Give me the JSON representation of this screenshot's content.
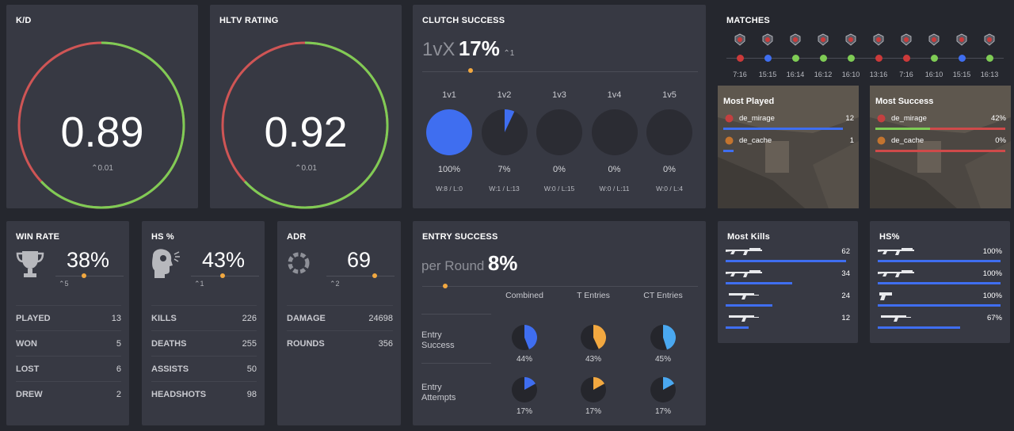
{
  "kd": {
    "title": "K/D",
    "value": "0.89",
    "change": "0.01",
    "ratio": 0.63
  },
  "hltv": {
    "title": "HLTV RATING",
    "value": "0.92",
    "change": "0.01",
    "ratio": 0.63
  },
  "clutch": {
    "title": "CLUTCH SUCCESS",
    "prefix": "1vX",
    "value": "17%",
    "change": "1",
    "items": [
      {
        "label": "1v1",
        "pct": "100%",
        "fraction": 1.0,
        "record": "W:8 / L:0"
      },
      {
        "label": "1v2",
        "pct": "7%",
        "fraction": 0.07,
        "record": "W:1 / L:13"
      },
      {
        "label": "1v3",
        "pct": "0%",
        "fraction": 0,
        "record": "W:0 / L:15"
      },
      {
        "label": "1v4",
        "pct": "0%",
        "fraction": 0,
        "record": "W:0 / L:11"
      },
      {
        "label": "1v5",
        "pct": "0%",
        "fraction": 0,
        "record": "W:0 / L:4"
      }
    ]
  },
  "matches": {
    "title": "MATCHES",
    "items": [
      {
        "time": "7:16",
        "result": "loss"
      },
      {
        "time": "15:15",
        "result": "draw"
      },
      {
        "time": "16:14",
        "result": "win"
      },
      {
        "time": "16:12",
        "result": "win"
      },
      {
        "time": "16:10",
        "result": "win"
      },
      {
        "time": "13:16",
        "result": "loss"
      },
      {
        "time": "7:16",
        "result": "loss"
      },
      {
        "time": "16:10",
        "result": "win"
      },
      {
        "time": "15:15",
        "result": "draw"
      },
      {
        "time": "16:13",
        "result": "win"
      }
    ]
  },
  "most_played": {
    "title": "Most Played",
    "items": [
      {
        "map": "de_mirage",
        "value": "12",
        "fraction": 0.92
      },
      {
        "map": "de_cache",
        "value": "1",
        "fraction": 0.08
      }
    ]
  },
  "most_success": {
    "title": "Most Success",
    "items": [
      {
        "map": "de_mirage",
        "value": "42%",
        "fraction": 0.42
      },
      {
        "map": "de_cache",
        "value": "0%",
        "fraction": 0
      }
    ]
  },
  "win_rate": {
    "title": "WIN RATE",
    "value": "38%",
    "change": "5",
    "rows": [
      {
        "label": "PLAYED",
        "value": "13"
      },
      {
        "label": "WON",
        "value": "5"
      },
      {
        "label": "LOST",
        "value": "6"
      },
      {
        "label": "DREW",
        "value": "2"
      }
    ]
  },
  "hs": {
    "title": "HS %",
    "value": "43%",
    "change": "1",
    "rows": [
      {
        "label": "KILLS",
        "value": "226"
      },
      {
        "label": "DEATHS",
        "value": "255"
      },
      {
        "label": "ASSISTS",
        "value": "50"
      },
      {
        "label": "HEADSHOTS",
        "value": "98"
      }
    ]
  },
  "adr": {
    "title": "ADR",
    "value": "69",
    "change": "2",
    "rows": [
      {
        "label": "DAMAGE",
        "value": "24698"
      },
      {
        "label": "ROUNDS",
        "value": "356"
      }
    ]
  },
  "entry": {
    "title": "ENTRY SUCCESS",
    "prefix": "per Round",
    "value": "8%",
    "columns": [
      "Combined",
      "T Entries",
      "CT Entries"
    ],
    "rows": [
      {
        "label": "Entry Success",
        "cells": [
          {
            "pct": "44%",
            "fraction": 0.44,
            "color": "#3f6ef0"
          },
          {
            "pct": "43%",
            "fraction": 0.43,
            "color": "#f2a840"
          },
          {
            "pct": "45%",
            "fraction": 0.45,
            "color": "#4aa8f0"
          }
        ]
      },
      {
        "label": "Entry Attempts",
        "cells": [
          {
            "pct": "17%",
            "fraction": 0.17,
            "color": "#3f6ef0"
          },
          {
            "pct": "17%",
            "fraction": 0.17,
            "color": "#f2a840"
          },
          {
            "pct": "17%",
            "fraction": 0.17,
            "color": "#4aa8f0"
          }
        ]
      }
    ]
  },
  "most_kills": {
    "title": "Most Kills",
    "items": [
      {
        "weapon": "ak47-icon",
        "value": "62",
        "fraction": 0.98
      },
      {
        "weapon": "m4a4-icon",
        "value": "34",
        "fraction": 0.54
      },
      {
        "weapon": "mp9-icon",
        "value": "24",
        "fraction": 0.38
      },
      {
        "weapon": "ump-icon",
        "value": "12",
        "fraction": 0.19
      }
    ]
  },
  "hs_weapons": {
    "title": "HS%",
    "items": [
      {
        "weapon": "m4a1-icon",
        "value": "100%",
        "fraction": 1.0
      },
      {
        "weapon": "sg553-icon",
        "value": "100%",
        "fraction": 1.0
      },
      {
        "weapon": "pistol-icon",
        "value": "100%",
        "fraction": 1.0
      },
      {
        "weapon": "mp7-icon",
        "value": "67%",
        "fraction": 0.67
      }
    ]
  },
  "colors": {
    "win": "#7fcc55",
    "loss": "#cc3a3a",
    "draw": "#3f6ef0",
    "accent": "#f2a840",
    "blue": "#3f6ef0",
    "red": "#cf4a4a",
    "green": "#7fcc55"
  }
}
